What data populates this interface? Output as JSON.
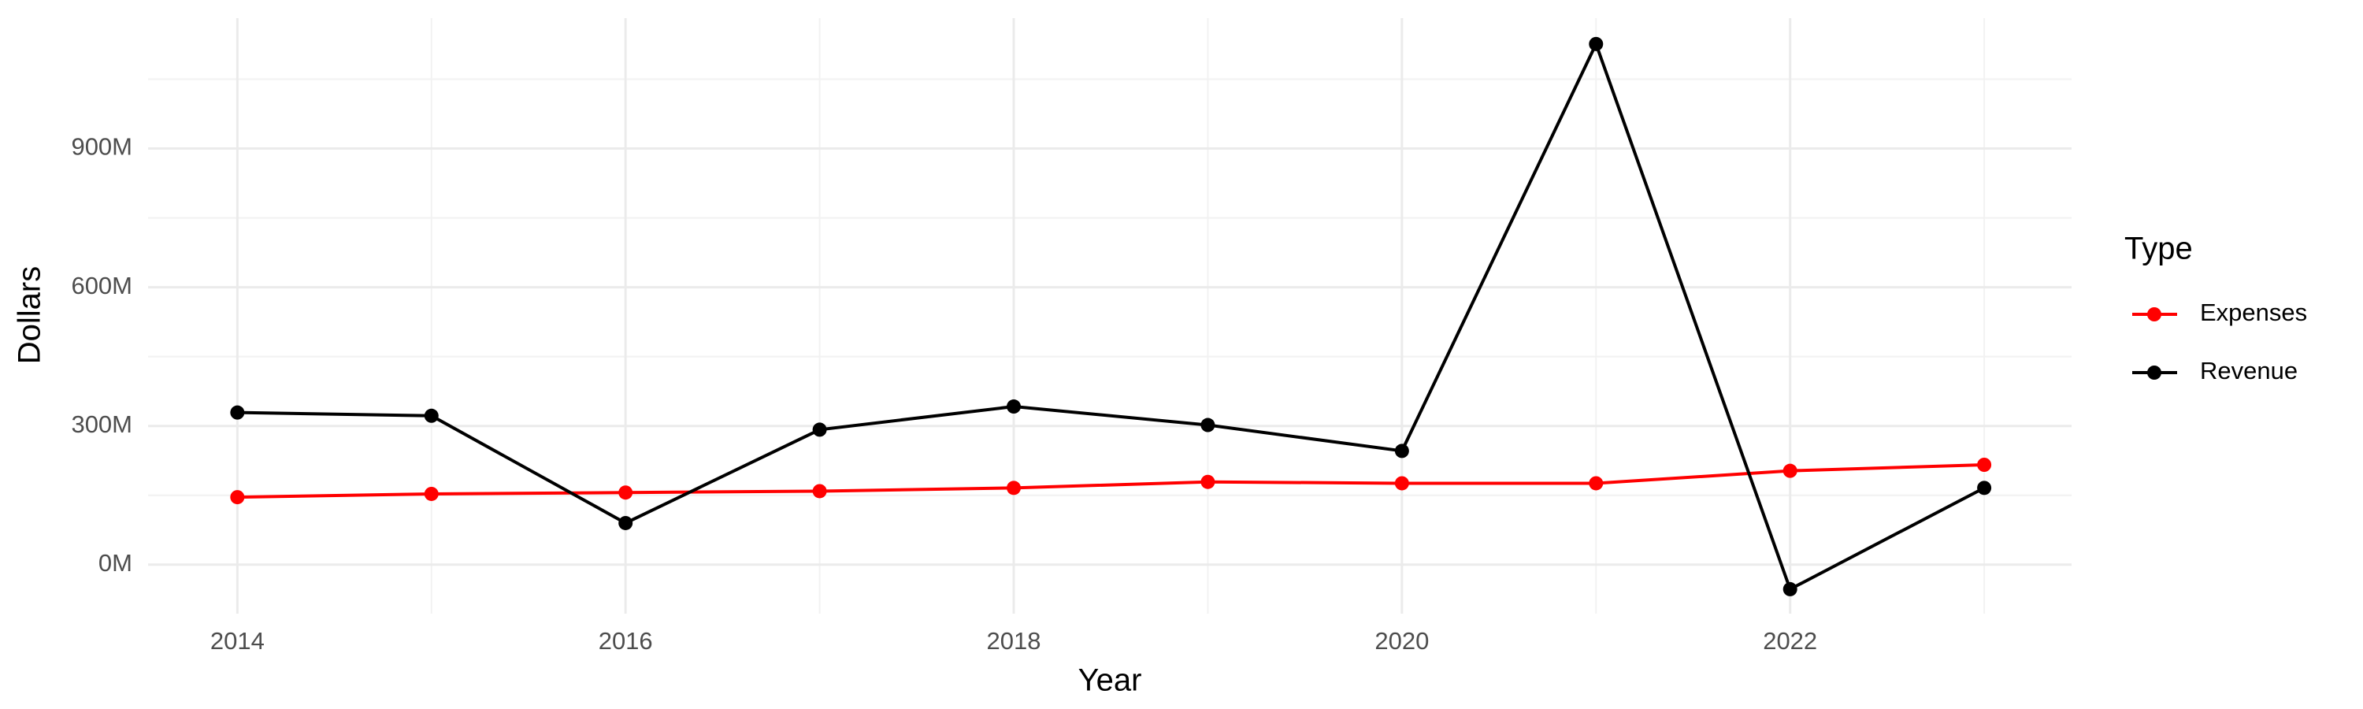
{
  "chart_data": {
    "type": "line",
    "x_label": "Year",
    "y_label": "Dollars",
    "legend_title": "Type",
    "x": [
      2014,
      2015,
      2016,
      2017,
      2018,
      2019,
      2020,
      2021,
      2022,
      2023
    ],
    "series": [
      {
        "name": "Expenses",
        "color": "#ff0000",
        "values": [
          146000000,
          153000000,
          156000000,
          159000000,
          166000000,
          179000000,
          176000000,
          176000000,
          203000000,
          216000000
        ]
      },
      {
        "name": "Revenue",
        "color": "#000000",
        "values": [
          329000000,
          322000000,
          90000000,
          292000000,
          342000000,
          302000000,
          246000000,
          1126000000,
          -53000000,
          166000000
        ]
      }
    ],
    "xlim": [
      2013.54,
      2023.45
    ],
    "xticks": [
      2014,
      2016,
      2018,
      2020,
      2022
    ],
    "ylim": [
      -106000000,
      1182000000
    ],
    "yticks": [
      {
        "value": 0,
        "label": "0M"
      },
      {
        "value": 300000000,
        "label": "300M"
      },
      {
        "value": 600000000,
        "label": "600M"
      },
      {
        "value": 900000000,
        "label": "900M"
      }
    ],
    "grid": true,
    "legend": "right"
  }
}
